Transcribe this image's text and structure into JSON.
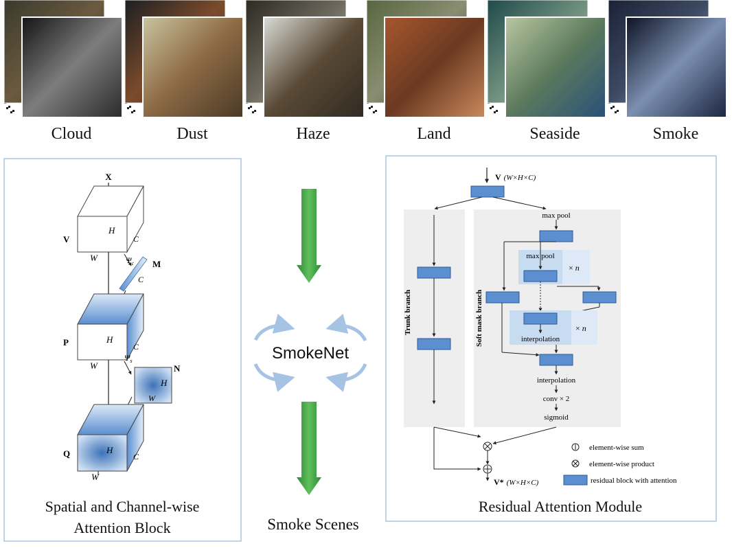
{
  "scenes": [
    {
      "label": "Cloud",
      "back": [
        "#3a3a2e",
        "#6b5a3f",
        "#2e2f28"
      ],
      "front": [
        "#151515",
        "#7d7d7d",
        "#2b2b2b"
      ]
    },
    {
      "label": "Dust",
      "back": [
        "#1c1f22",
        "#7b4b2c",
        "#3b3226"
      ],
      "front": [
        "#c9c49f",
        "#8c6a44",
        "#4a3a28"
      ]
    },
    {
      "label": "Haze",
      "back": [
        "#2d2a22",
        "#6e6a5e",
        "#cfcfc4"
      ],
      "front": [
        "#d9dcd6",
        "#5a4a36",
        "#2f2a22"
      ]
    },
    {
      "label": "Land",
      "back": [
        "#58663f",
        "#8a8d72",
        "#2f3b25"
      ],
      "front": [
        "#a8562d",
        "#6b3a22",
        "#c9895c"
      ]
    },
    {
      "label": "Seaside",
      "back": [
        "#1f4a4b",
        "#6e8f7e",
        "#cfc9a8"
      ],
      "front": [
        "#b9c7a2",
        "#5c7a5c",
        "#28507a"
      ]
    },
    {
      "label": "Smoke",
      "back": [
        "#1b2236",
        "#3d4a63",
        "#a7b0c6"
      ],
      "front": [
        "#0d1324",
        "#7b8fb0",
        "#1b2540"
      ]
    }
  ],
  "left_panel": {
    "title_line1": "Spatial and Channel-wise",
    "title_line2": "Attention Block",
    "labels": {
      "x": "X",
      "v": "V",
      "p": "P",
      "q": "Q",
      "m": "M",
      "n": "N",
      "h": "H",
      "w": "W",
      "c": "C",
      "psi_c": "Ψ",
      "psi_c_sub": "c",
      "psi_s": "Ψ",
      "psi_s_sub": "s"
    }
  },
  "center": {
    "label": "SmokeNet",
    "bottom_label": "Smoke Scenes"
  },
  "right_panel": {
    "title": "Residual Attention Module",
    "input_label": "V",
    "input_dims": "(W×H×C)",
    "output_label": "V*",
    "output_dims": "(W×H×C)",
    "trunk_branch": "Trunk branch",
    "soft_mask_branch": "Soft mask branch",
    "max_pool_1": "max pool",
    "max_pool_2": "max pool",
    "times_n_1": "× n",
    "times_n_2": "× n",
    "interpolation_1": "interpolation",
    "interpolation_2": "interpolation",
    "conv": "conv × 2",
    "sigmoid": "sigmoid",
    "legend": [
      {
        "symbol": "sum",
        "text": "element-wise sum"
      },
      {
        "symbol": "product",
        "text": "element-wise product"
      },
      {
        "symbol": "block",
        "text": "residual block with attention"
      }
    ]
  },
  "colors": {
    "panel_border": "#a9c4e0",
    "block_fill": "#5b8fd0",
    "block_stroke": "#2f5a93",
    "arrow_green": "#43a047",
    "cycle_blue": "#a7c3e3",
    "branch_bg": "#eeeeee",
    "highlight_bg": "#c8dcf1"
  }
}
